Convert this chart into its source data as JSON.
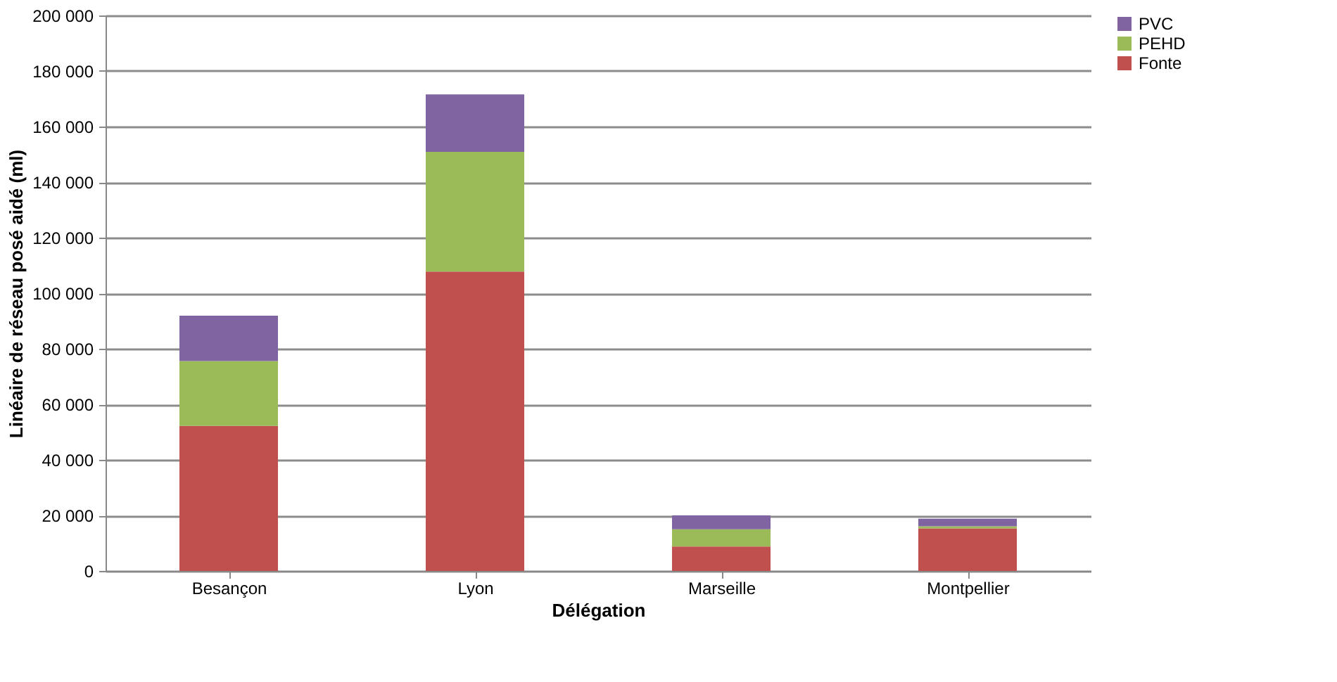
{
  "chart_data": {
    "type": "bar",
    "stacked": true,
    "xlabel": "Délégation",
    "ylabel": "Linéaire de réseau posé aidé (ml)",
    "categories": [
      "Besançon",
      "Lyon",
      "Marseille",
      "Montpellier"
    ],
    "series": [
      {
        "name": "Fonte",
        "color": "#c0504d",
        "values": [
          52200,
          107800,
          8800,
          15300
        ]
      },
      {
        "name": "PEHD",
        "color": "#9bbb59",
        "values": [
          23400,
          43100,
          6200,
          800
        ]
      },
      {
        "name": "PVC",
        "color": "#8064a2",
        "values": [
          16300,
          20700,
          5000,
          2700
        ]
      }
    ],
    "ylim": [
      0,
      200000
    ],
    "yticks": [
      0,
      {
        "value": 20000,
        "label": "20 000"
      },
      {
        "value": 40000,
        "label": "40 000"
      },
      {
        "value": 60000,
        "label": "60 000"
      },
      {
        "value": 80000,
        "label": "80 000"
      },
      {
        "value": 100000,
        "label": "100 000"
      },
      {
        "value": 120000,
        "label": "120 000"
      },
      {
        "value": 140000,
        "label": "140 000"
      },
      {
        "value": 160000,
        "label": "160 000"
      },
      {
        "value": 180000,
        "label": "180 000"
      },
      {
        "value": 200000,
        "label": "200 000"
      }
    ],
    "grid": "y",
    "legend": "right"
  }
}
